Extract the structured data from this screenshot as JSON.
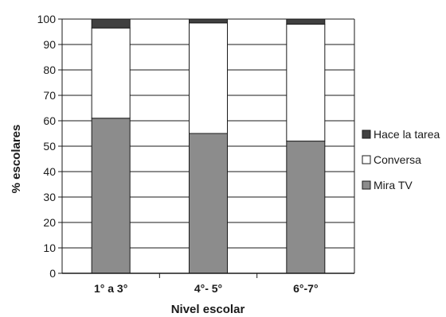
{
  "chart_data": {
    "type": "bar",
    "stacked": true,
    "categories": [
      "1° a 3°",
      "4°- 5°",
      "6°-7°"
    ],
    "series": [
      {
        "name": "Mira TV",
        "values": [
          61,
          55,
          52
        ],
        "color": "#8c8c8c"
      },
      {
        "name": "Conversa",
        "values": [
          35.5,
          43.5,
          46
        ],
        "color": "#ffffff"
      },
      {
        "name": "Hace la tarea",
        "values": [
          3.5,
          1.5,
          2
        ],
        "color": "#404040"
      }
    ],
    "legend_order": [
      "Hace la tarea",
      "Conversa",
      "Mira TV"
    ],
    "title": "",
    "xlabel": "Nivel escolar",
    "ylabel": "% escolares",
    "ylim": [
      0,
      100
    ],
    "yticks": [
      0,
      10,
      20,
      30,
      40,
      50,
      60,
      70,
      80,
      90,
      100
    ],
    "grid": true,
    "legend_position": "right"
  }
}
